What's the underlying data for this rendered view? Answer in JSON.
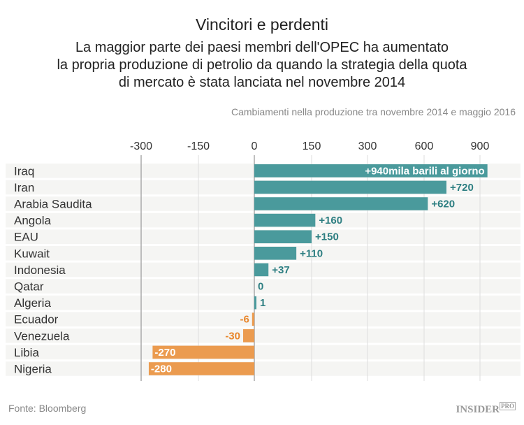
{
  "chart_data": {
    "type": "bar",
    "orientation": "horizontal",
    "title": "Vincitori e perdenti",
    "subtitle": "La maggior parte dei paesi membri dell'OPEC ha aumentato la propria produzione di petrolio da quando la strategia della quota di mercato è stata lanciata nel novembre 2014",
    "subtitle_lines": [
      "La maggior parte dei paesi membri dell'OPEC ha aumentato",
      "la propria produzione di petrolio da quando la strategia della quota",
      "di mercato è stata lanciata nel novembre 2014"
    ],
    "axis_label": "Cambiamenti nella produzione tra novembre 2014 e maggio 2016",
    "x_ticks": [
      -300,
      -150,
      0,
      150,
      300,
      600,
      900
    ],
    "x_tick_labels": [
      "-300",
      "-150",
      "0",
      "150",
      "300",
      "600",
      "900"
    ],
    "xlim": [
      -300,
      900
    ],
    "scale_note": "piecewise: 0-300 and 300-900 share equal tick spacing per tick",
    "categories": [
      "Iraq",
      "Iran",
      "Arabia Saudita",
      "Angola",
      "EAU",
      "Kuwait",
      "Indonesia",
      "Qatar",
      "Algeria",
      "Ecuador",
      "Venezuela",
      "Libia",
      "Nigeria"
    ],
    "values": [
      940,
      720,
      620,
      160,
      150,
      110,
      37,
      0,
      1,
      -6,
      -30,
      -270,
      -280
    ],
    "data_labels": [
      "+940mila barili al giorno",
      "+720",
      "+620",
      "+160",
      "+150",
      "+110",
      "+37",
      "0",
      "1",
      "-6",
      "-30",
      "-270",
      "-280"
    ],
    "colors": {
      "positive": "#4a9a9c",
      "negative": "#eb9b4f",
      "positive_text": "#2e7f82",
      "negative_text": "#e8862b"
    },
    "grid": true
  },
  "footer": {
    "source": "Fonte: Bloomberg",
    "logo": "INSIDER",
    "logo_sup": "PRO"
  }
}
